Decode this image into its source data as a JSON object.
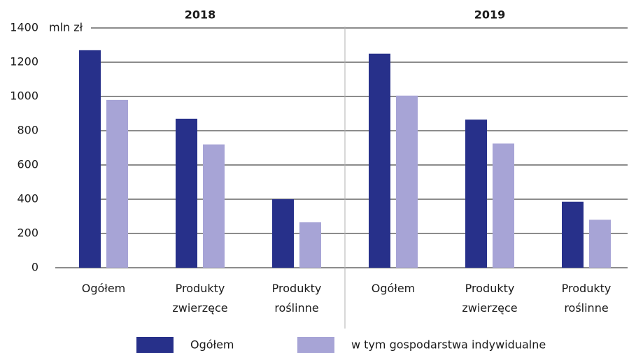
{
  "chart_data": {
    "type": "bar",
    "y_unit": "mln zł",
    "groups": [
      "2018",
      "2019"
    ],
    "categories": [
      "Ogółem",
      "Produkty zwierzęce",
      "Produkty roślinne",
      "Ogółem",
      "Produkty zwierzęce",
      "Produkty roślinne"
    ],
    "series": [
      {
        "name": "Ogółem",
        "color": "#27308a",
        "values": [
          1270,
          870,
          400,
          1250,
          865,
          385
        ]
      },
      {
        "name": "w tym gospodarstwa indywidualne",
        "color": "#a7a4d6",
        "values": [
          980,
          720,
          265,
          1005,
          725,
          280
        ]
      }
    ],
    "ylim": [
      0,
      1400
    ],
    "yticks": [
      0,
      200,
      400,
      600,
      800,
      1000,
      1200,
      1400
    ],
    "grid": true
  }
}
